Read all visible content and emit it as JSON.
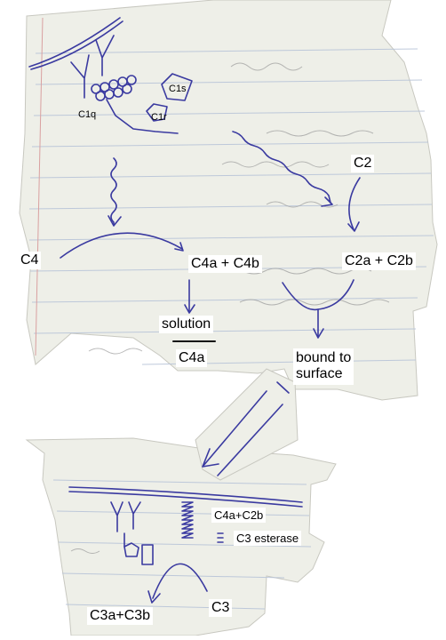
{
  "labels": {
    "c1s": "C1s",
    "c1q": "C1q",
    "c1r": "C1r",
    "c2": "C2",
    "c4": "C4",
    "c4a_c4b": "C4a + C4b",
    "c2a_c2b": "C2a + C2b",
    "solution": "solution",
    "c4a": "C4a",
    "bound_to_surface_line1": "bound to",
    "bound_to_surface_line2": "surface",
    "c4a_c2b": "C4a+C2b",
    "c3_esterase": "C3 esterase",
    "c3a_c3b": "C3a+C3b",
    "c3": "C3"
  },
  "colors": {
    "ink": "#3a3aa0",
    "paper": "#eeefe8",
    "ruled_line": "#b8c4d8",
    "margin_line": "#d9a0a0",
    "pencil": "#9a9a9a"
  }
}
